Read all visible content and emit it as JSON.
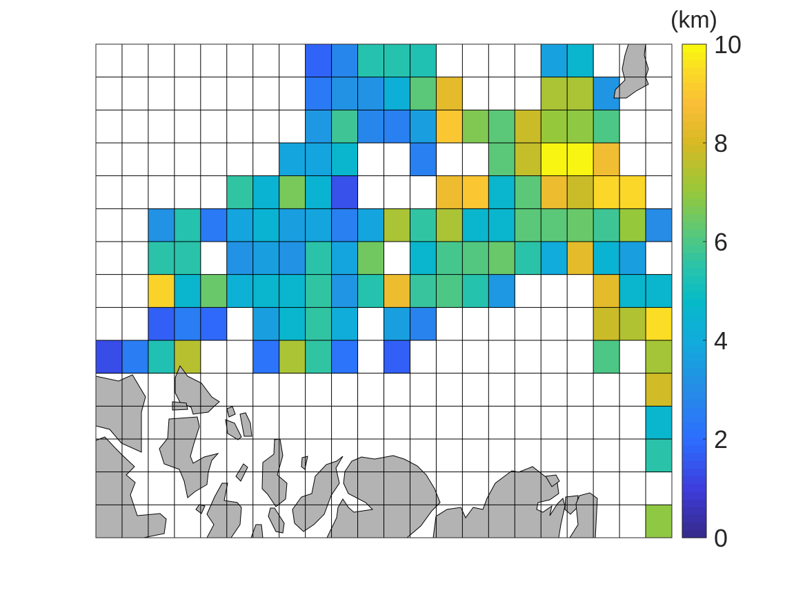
{
  "chart_data": {
    "type": "heatmap",
    "title": "",
    "xlabel": "",
    "ylabel": "",
    "colorbar": {
      "unit": "(km)",
      "min": 0,
      "max": 10,
      "ticks": [
        0,
        2,
        4,
        6,
        8,
        10
      ],
      "tick_labels": [
        "0",
        "2",
        "4",
        "6",
        "8",
        "10"
      ],
      "colormap": "parula"
    },
    "grid_on": true,
    "rows": 15,
    "cols": 22,
    "values": [
      [
        null,
        null,
        null,
        null,
        null,
        null,
        null,
        null,
        1.8,
        2.8,
        5.4,
        5.4,
        5.3,
        null,
        null,
        null,
        null,
        3.7,
        4.6,
        null,
        null,
        null
      ],
      [
        null,
        null,
        null,
        null,
        null,
        null,
        null,
        null,
        2.4,
        3.2,
        3.2,
        4.2,
        6.2,
        8.3,
        null,
        null,
        null,
        7.3,
        7.3,
        3.3,
        null,
        null
      ],
      [
        null,
        null,
        null,
        null,
        null,
        null,
        null,
        null,
        3.4,
        5.8,
        2.8,
        2.6,
        3.6,
        9.0,
        6.7,
        6.2,
        7.8,
        7.0,
        6.9,
        6.0,
        null,
        null
      ],
      [
        null,
        null,
        null,
        null,
        null,
        null,
        null,
        3.8,
        3.8,
        4.6,
        null,
        null,
        2.6,
        null,
        null,
        6.2,
        7.7,
        9.9,
        9.9,
        8.6,
        null,
        null
      ],
      [
        null,
        null,
        null,
        null,
        null,
        5.6,
        4.4,
        6.6,
        4.4,
        1.4,
        null,
        null,
        null,
        8.5,
        9.0,
        4.6,
        6.2,
        8.5,
        7.8,
        9.4,
        9.4,
        null
      ],
      [
        null,
        null,
        3.2,
        5.4,
        2.4,
        3.8,
        4.4,
        3.6,
        3.8,
        2.6,
        3.8,
        7.3,
        5.6,
        7.3,
        4.6,
        4.6,
        6.2,
        6.2,
        6.4,
        5.8,
        7.0,
        3.0
      ],
      [
        null,
        null,
        5.5,
        5.5,
        null,
        3.2,
        3.6,
        3.2,
        5.5,
        3.8,
        6.5,
        null,
        4.6,
        5.9,
        6.1,
        6.4,
        5.5,
        4.0,
        8.3,
        4.4,
        3.6,
        null
      ],
      [
        null,
        null,
        9.3,
        4.6,
        6.4,
        4.3,
        4.6,
        4.6,
        5.6,
        3.3,
        5.4,
        8.5,
        5.7,
        6.0,
        5.4,
        3.4,
        null,
        null,
        null,
        8.3,
        4.6,
        4.6
      ],
      [
        null,
        null,
        1.7,
        2.5,
        1.9,
        null,
        3.6,
        4.6,
        5.6,
        4.1,
        null,
        3.6,
        2.7,
        null,
        null,
        null,
        null,
        null,
        null,
        7.8,
        7.4,
        9.5
      ],
      [
        1.3,
        2.5,
        5.3,
        7.5,
        null,
        null,
        2.2,
        7.3,
        5.6,
        2.2,
        null,
        1.7,
        null,
        null,
        null,
        null,
        null,
        null,
        null,
        6.0,
        null,
        7.2
      ],
      [
        null,
        null,
        null,
        null,
        null,
        null,
        null,
        null,
        null,
        null,
        null,
        null,
        null,
        null,
        null,
        null,
        null,
        null,
        null,
        null,
        null,
        7.9
      ],
      [
        null,
        null,
        null,
        null,
        null,
        null,
        null,
        null,
        null,
        null,
        null,
        null,
        null,
        null,
        null,
        null,
        null,
        null,
        null,
        null,
        null,
        4.6
      ],
      [
        null,
        null,
        null,
        null,
        null,
        null,
        null,
        null,
        null,
        null,
        null,
        null,
        null,
        null,
        null,
        null,
        null,
        null,
        null,
        null,
        null,
        5.5
      ],
      [
        null,
        null,
        null,
        null,
        null,
        null,
        null,
        null,
        null,
        null,
        null,
        null,
        null,
        null,
        null,
        null,
        null,
        null,
        null,
        null,
        null,
        null
      ],
      [
        null,
        null,
        null,
        null,
        null,
        null,
        null,
        null,
        null,
        null,
        null,
        null,
        null,
        null,
        null,
        null,
        null,
        null,
        null,
        null,
        null,
        6.9
      ]
    ],
    "colors": {
      "land": "#b3b3b3",
      "grid": "#000000",
      "background": "#ffffff"
    }
  }
}
